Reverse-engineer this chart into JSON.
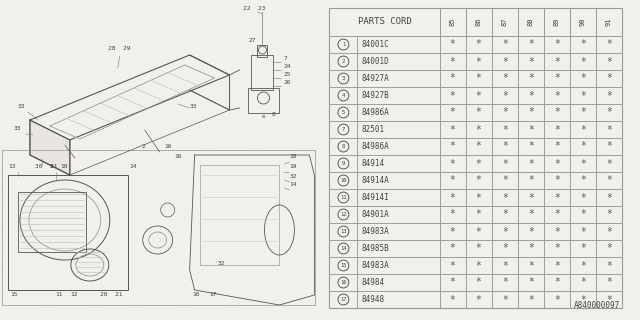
{
  "bg_color": "#f2f0eb",
  "table_header": "PARTS CORD",
  "years": [
    "85",
    "86",
    "87",
    "88",
    "89",
    "90",
    "91"
  ],
  "parts": [
    {
      "num": 1,
      "code": "84001C"
    },
    {
      "num": 2,
      "code": "84001D"
    },
    {
      "num": 3,
      "code": "84927A"
    },
    {
      "num": 4,
      "code": "84927B"
    },
    {
      "num": 5,
      "code": "84986A"
    },
    {
      "num": 7,
      "code": "82501"
    },
    {
      "num": 8,
      "code": "84986A"
    },
    {
      "num": 9,
      "code": "84914"
    },
    {
      "num": 10,
      "code": "84914A"
    },
    {
      "num": 11,
      "code": "84914I"
    },
    {
      "num": 12,
      "code": "84901A"
    },
    {
      "num": 13,
      "code": "84983A"
    },
    {
      "num": 14,
      "code": "84985B"
    },
    {
      "num": 15,
      "code": "84983A"
    },
    {
      "num": 16,
      "code": "84984"
    },
    {
      "num": 17,
      "code": "84948"
    }
  ],
  "footer_text": "A840000097",
  "line_color": "#888888",
  "text_color": "#444444",
  "star_color": "#555555",
  "table_line_color": "#999999"
}
